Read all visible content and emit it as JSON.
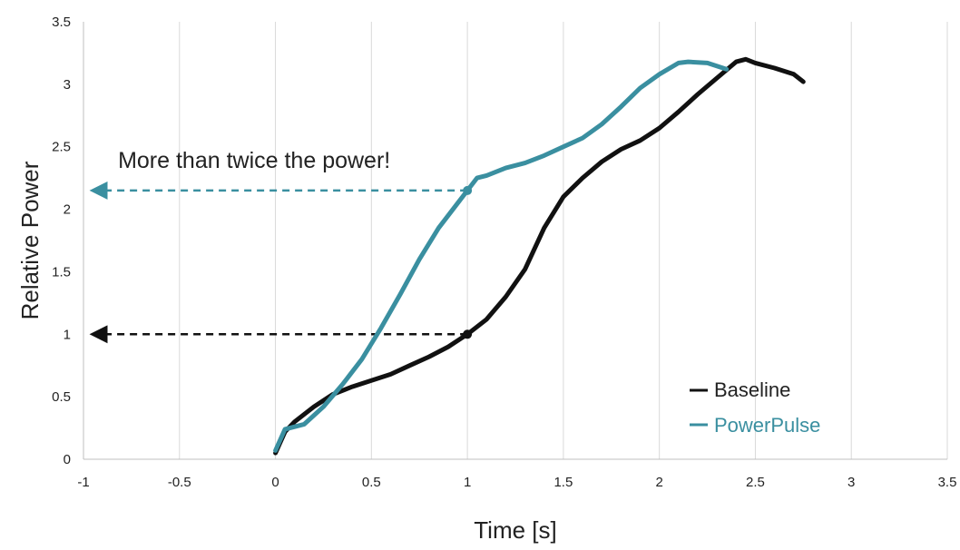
{
  "chart_data": {
    "type": "line",
    "title": "",
    "xlabel": "Time [s]",
    "ylabel": "Relative Power",
    "xlim": [
      -1,
      3.5
    ],
    "ylim": [
      0,
      3.5
    ],
    "xticks": [
      -1,
      -0.5,
      0,
      0.5,
      1,
      1.5,
      2,
      2.5,
      3,
      3.5
    ],
    "xtick_labels": [
      "-1",
      "-0.5",
      "0",
      "0.5",
      "1",
      "1.5",
      "2",
      "2.5",
      "3",
      "3.5"
    ],
    "yticks": [
      0,
      0.5,
      1,
      1.5,
      2,
      2.5,
      3,
      3.5
    ],
    "ytick_labels": [
      "0",
      "0.5",
      "1",
      "1.5",
      "2",
      "2.5",
      "3",
      "3.5"
    ],
    "grid": "vertical",
    "legend_position": "bottom-right",
    "series": [
      {
        "name": "Baseline",
        "color": "#111111",
        "x": [
          0,
          0.05,
          0.1,
          0.2,
          0.3,
          0.4,
          0.5,
          0.6,
          0.7,
          0.8,
          0.9,
          1.0,
          1.1,
          1.2,
          1.3,
          1.4,
          1.5,
          1.6,
          1.7,
          1.8,
          1.9,
          2.0,
          2.1,
          2.2,
          2.3,
          2.4,
          2.45,
          2.5,
          2.6,
          2.7,
          2.75
        ],
        "y": [
          0.05,
          0.22,
          0.3,
          0.42,
          0.52,
          0.58,
          0.63,
          0.68,
          0.75,
          0.82,
          0.9,
          1.0,
          1.12,
          1.3,
          1.52,
          1.85,
          2.1,
          2.25,
          2.38,
          2.48,
          2.55,
          2.65,
          2.78,
          2.92,
          3.05,
          3.18,
          3.2,
          3.17,
          3.13,
          3.08,
          3.02
        ]
      },
      {
        "name": "PowerPulse",
        "color": "#3a8fa0",
        "x": [
          0,
          0.05,
          0.15,
          0.25,
          0.35,
          0.45,
          0.55,
          0.65,
          0.75,
          0.85,
          0.95,
          1.0,
          1.05,
          1.1,
          1.2,
          1.3,
          1.4,
          1.5,
          1.6,
          1.7,
          1.8,
          1.9,
          2.0,
          2.1,
          2.15,
          2.25,
          2.35
        ],
        "y": [
          0.07,
          0.24,
          0.28,
          0.42,
          0.6,
          0.8,
          1.05,
          1.32,
          1.6,
          1.85,
          2.05,
          2.15,
          2.25,
          2.27,
          2.33,
          2.37,
          2.43,
          2.5,
          2.57,
          2.68,
          2.82,
          2.97,
          3.08,
          3.17,
          3.18,
          3.17,
          3.12
        ]
      }
    ],
    "markers": [
      {
        "x": 1.0,
        "y": 2.15,
        "color": "#3a8fa0"
      },
      {
        "x": 1.0,
        "y": 1.0,
        "color": "#111111"
      }
    ],
    "arrows": [
      {
        "from_x": 1.0,
        "to_x": -0.95,
        "y": 2.15,
        "color": "#3a8fa0",
        "style": "dashed"
      },
      {
        "from_x": 1.0,
        "to_x": -0.95,
        "y": 1.0,
        "color": "#111111",
        "style": "dashed"
      }
    ],
    "annotations": [
      {
        "text": "More than twice the power!",
        "x": -0.82,
        "y": 2.33
      }
    ]
  }
}
